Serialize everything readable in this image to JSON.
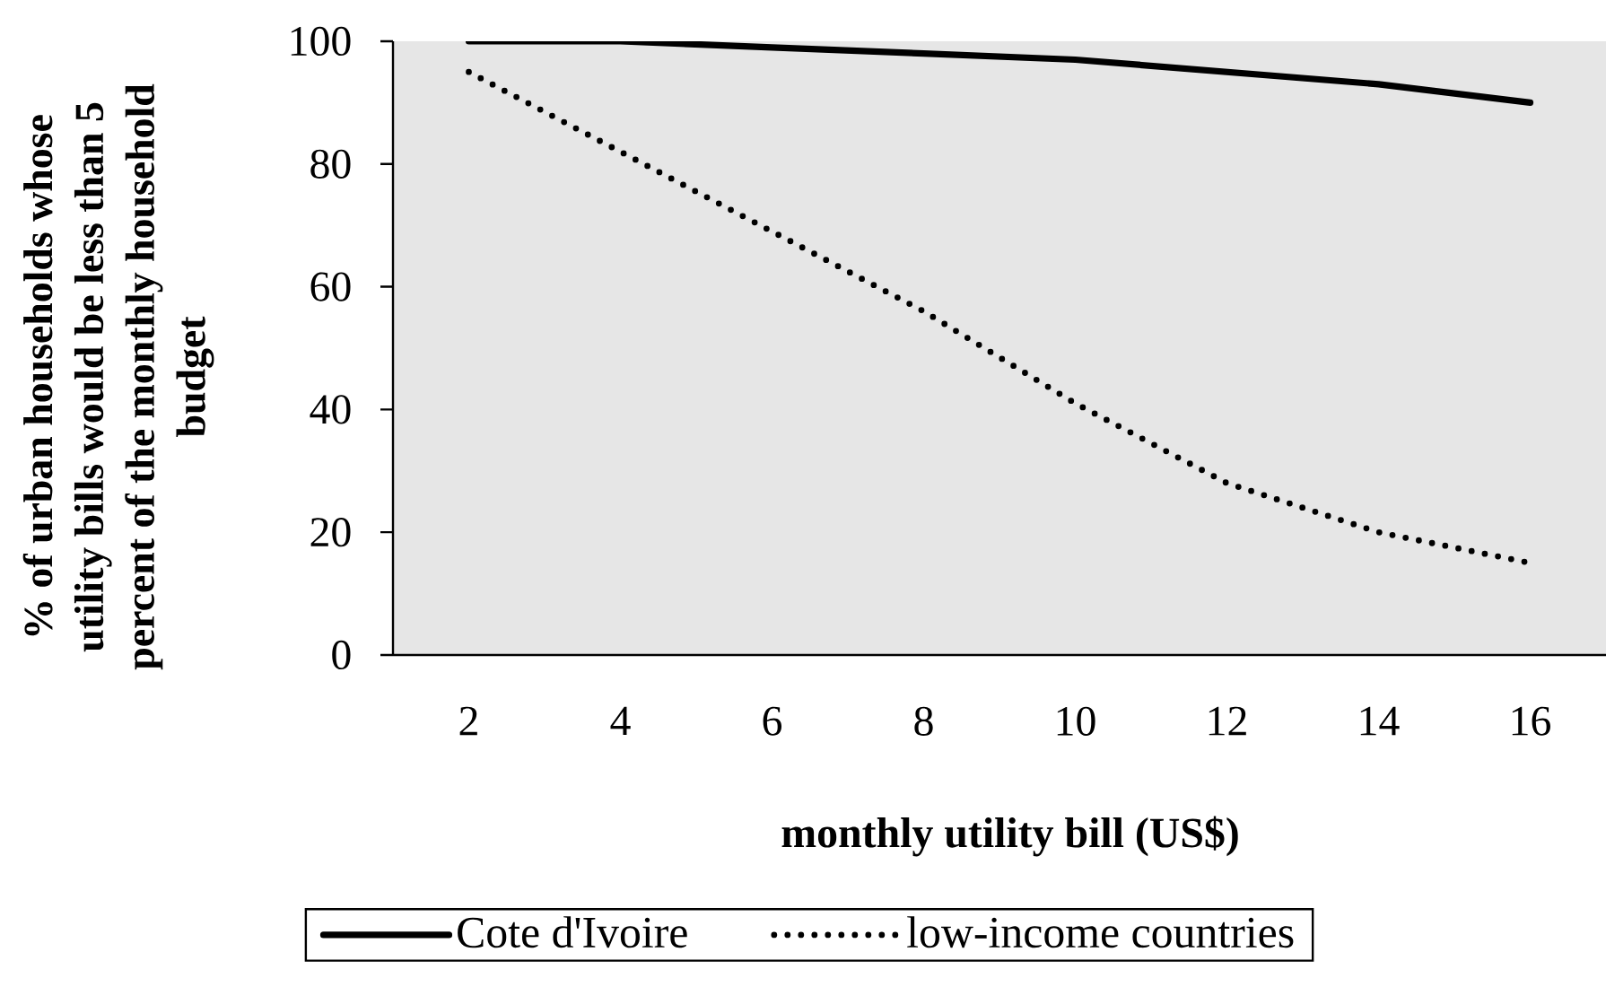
{
  "chart_data": {
    "type": "line",
    "xlabel": "monthly utility bill (US$)",
    "ylabel": "% of urban households whose utility bills would be less than 5 percent of the monthly household budget",
    "categories": [
      "2",
      "4",
      "6",
      "8",
      "10",
      "12",
      "14",
      "16"
    ],
    "series": [
      {
        "name": "Cote d'Ivoire",
        "color": "#000000",
        "line_style": "solid",
        "values": [
          100,
          100,
          99,
          98,
          97,
          95,
          93,
          90
        ]
      },
      {
        "name": "low-income countries",
        "color": "#000000",
        "line_style": "dotted",
        "values": [
          95,
          82,
          69,
          56,
          41,
          28,
          20,
          15
        ]
      }
    ],
    "ylim": [
      0,
      100
    ],
    "yticks": [
      0,
      20,
      40,
      60,
      80,
      100
    ],
    "legend": "bottom"
  }
}
